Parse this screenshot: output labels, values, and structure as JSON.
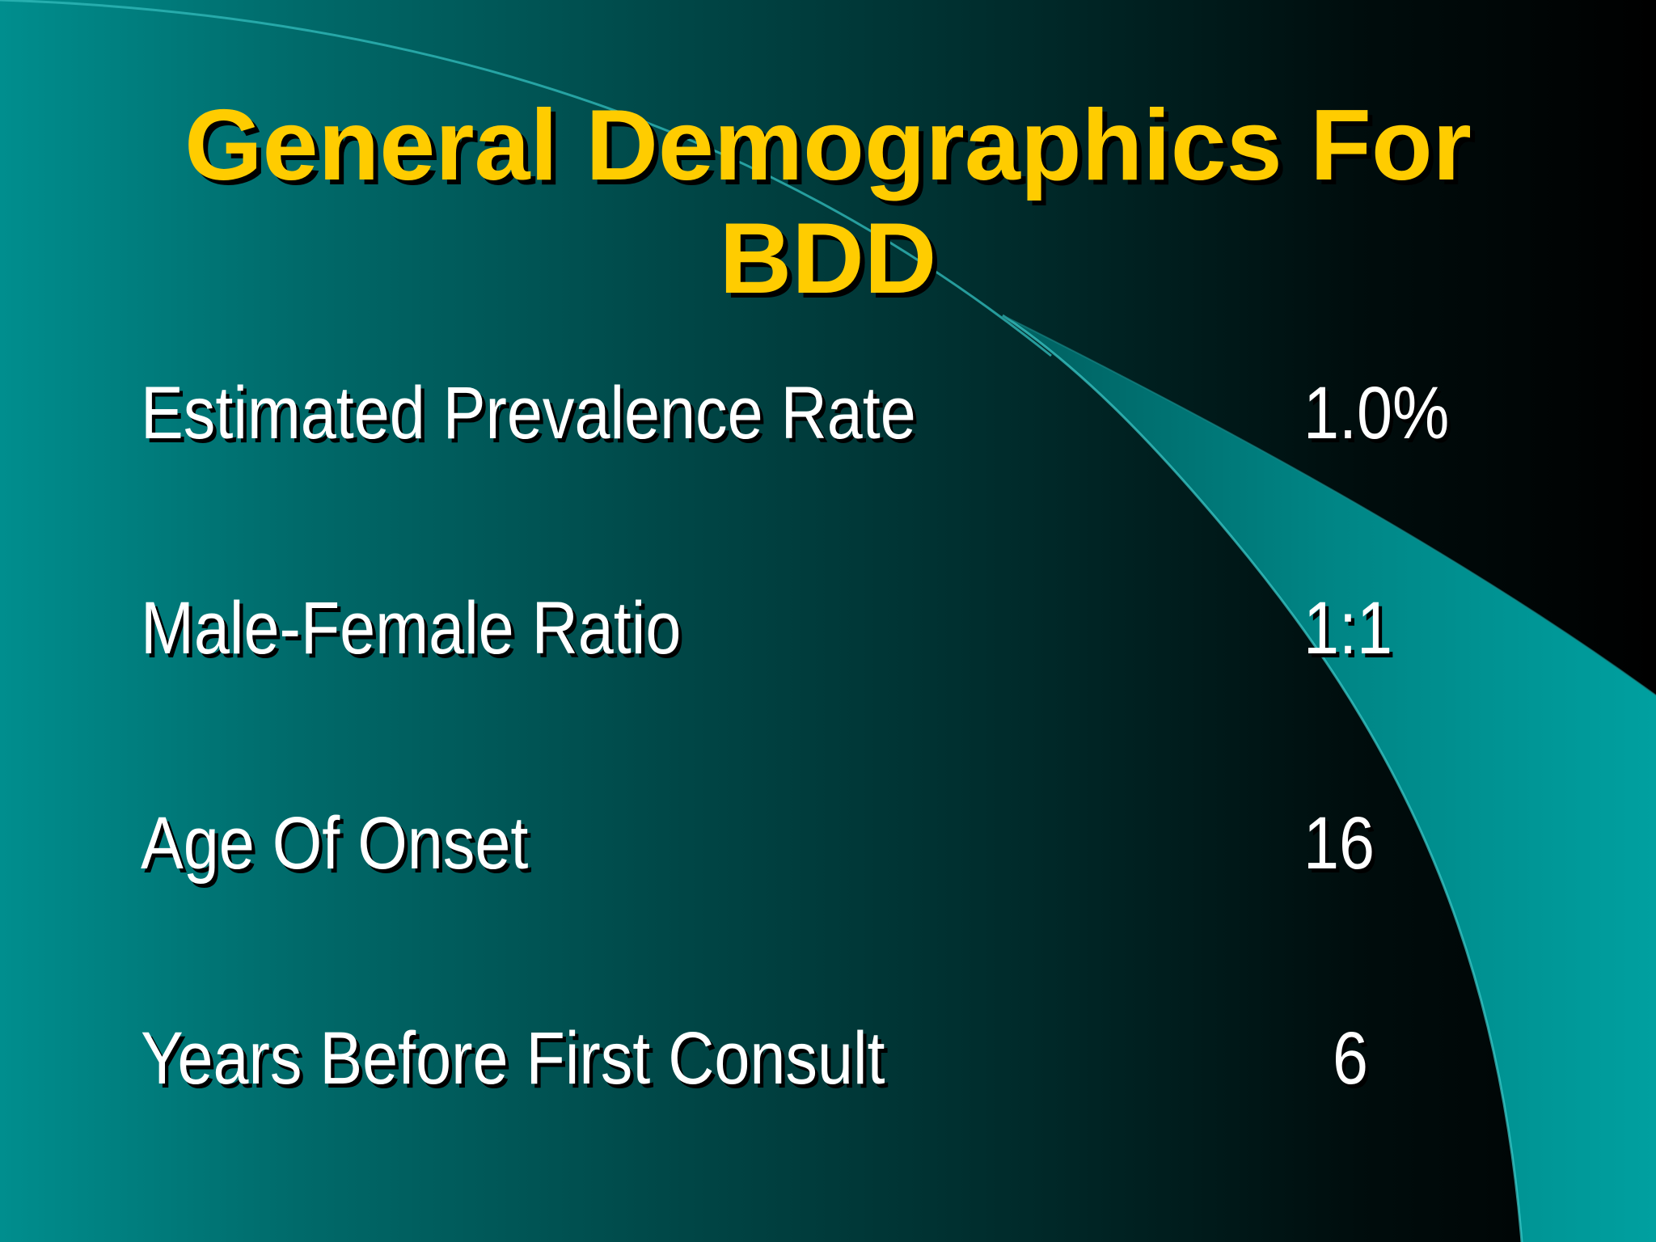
{
  "slide": {
    "title_line1": "General Demographics For",
    "title_line2": "BDD",
    "rows": [
      {
        "label": "Estimated Prevalence Rate",
        "value": "1.0%"
      },
      {
        "label": "Male-Female Ratio",
        "value": "1:1"
      },
      {
        "label": "Age Of Onset",
        "value": "16"
      },
      {
        "label": "Years Before First Consult",
        "value": "6"
      }
    ]
  },
  "colors": {
    "title": "#ffcc00",
    "text": "#ffffff",
    "background_light": "#008e8e",
    "background_dark": "#000000",
    "swoosh": "#009999"
  }
}
